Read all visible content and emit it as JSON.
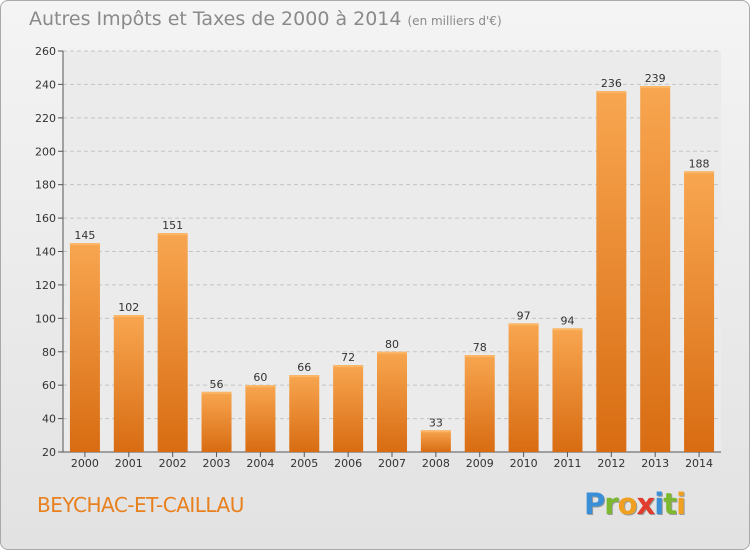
{
  "title": "Autres Impôts et Taxes de 2000 à 2014",
  "unit_note": "(en milliers d'€)",
  "commune": "BEYCHAC-ET-CAILLAU",
  "logo": {
    "letters": [
      "P",
      "r",
      "o",
      "x",
      "i",
      "t",
      "i"
    ],
    "colors": [
      "#3b8fd6",
      "#7cb830",
      "#f0a020",
      "#e23c2e",
      "#3b8fd6",
      "#7cb830",
      "#f0a020"
    ]
  },
  "chart_data": {
    "type": "bar",
    "title": "Autres Impôts et Taxes de 2000 à 2014",
    "categories": [
      "2000",
      "2001",
      "2002",
      "2003",
      "2004",
      "2005",
      "2006",
      "2007",
      "2008",
      "2009",
      "2010",
      "2011",
      "2012",
      "2013",
      "2014"
    ],
    "values": [
      145,
      102,
      151,
      56,
      60,
      66,
      72,
      80,
      33,
      78,
      97,
      94,
      236,
      239,
      188
    ],
    "ylim": [
      20,
      260
    ],
    "yticks": [
      20,
      40,
      60,
      80,
      100,
      120,
      140,
      160,
      180,
      200,
      220,
      240,
      260
    ],
    "grid": true,
    "bar_color": "#f0902c"
  }
}
